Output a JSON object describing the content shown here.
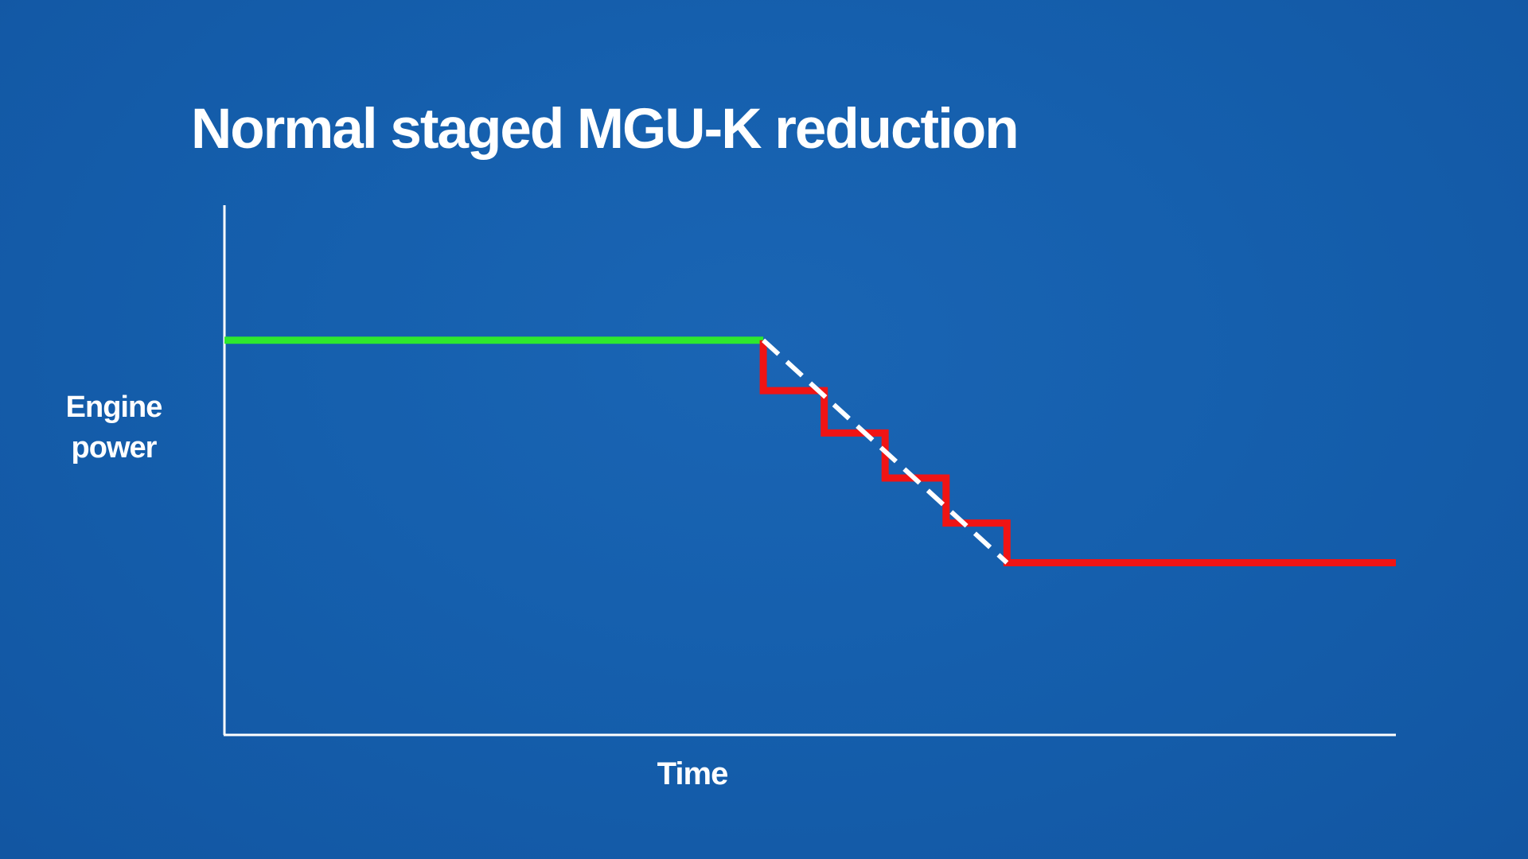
{
  "chart_data": {
    "type": "line",
    "title": "Normal staged MGU-K reduction",
    "xlabel": "Time",
    "ylabel": "Engine\npower",
    "xlim": [
      0,
      10
    ],
    "ylim": [
      0,
      10
    ],
    "grid": false,
    "legend": "none",
    "series": [
      {
        "color": "#2ee82e",
        "style": "solid",
        "x": [
          0,
          4.6
        ],
        "y": [
          7.45,
          7.45
        ]
      },
      {
        "color": "#f01414",
        "style": "solid",
        "x": [
          4.6,
          4.6,
          5.12,
          5.12,
          5.64,
          5.64,
          6.16,
          6.16,
          6.68,
          6.68,
          10
        ],
        "y": [
          7.45,
          6.5,
          6.5,
          5.7,
          5.7,
          4.85,
          4.85,
          4.0,
          4.0,
          3.25,
          3.25
        ]
      },
      {
        "color": "#ffffff",
        "style": "dashed",
        "x": [
          4.6,
          6.68
        ],
        "y": [
          7.45,
          3.25
        ]
      }
    ]
  }
}
